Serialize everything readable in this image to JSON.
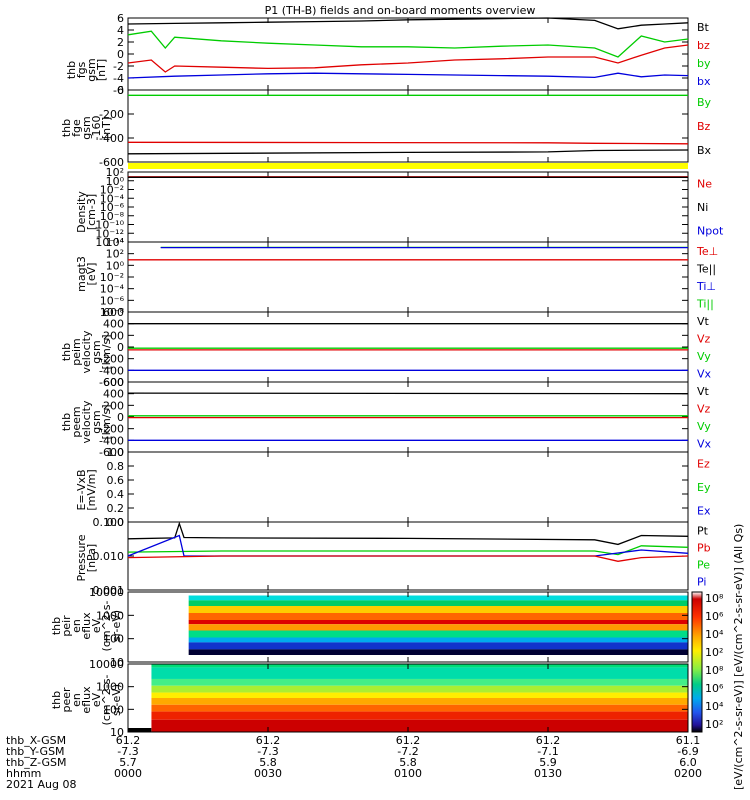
{
  "title": "P1 (TH-B) fields and on-board moments overview",
  "panels": [
    {
      "ylabel": [
        "thb",
        "fgs",
        "gsm",
        "[nT]"
      ],
      "ticks": [
        "6",
        "4",
        "2",
        "0",
        "-2",
        "-4",
        "-6"
      ],
      "legend": [
        {
          "label": "Bt",
          "color": "#000000"
        },
        {
          "label": "bz",
          "color": "#e00000"
        },
        {
          "label": "by",
          "color": "#00cc00"
        },
        {
          "label": "bx",
          "color": "#0000dd"
        }
      ]
    },
    {
      "ylabel": [
        "thb",
        "fge",
        "gsm",
        "-160",
        "[nT]"
      ],
      "ticks": [
        "0",
        "-200",
        "-400",
        "-600"
      ],
      "legend": [
        {
          "label": "By",
          "color": "#00cc00"
        },
        {
          "label": "Bz",
          "color": "#e00000"
        },
        {
          "label": "Bx",
          "color": "#000000"
        }
      ]
    },
    {
      "ylabel": [
        "Density",
        "[cm-3]"
      ],
      "ticks": [
        "10²",
        "10⁰",
        "10⁻²",
        "10⁻⁴",
        "10⁻⁶",
        "10⁻⁸",
        "10⁻¹⁰",
        "10⁻¹²",
        "10⁻¹⁴"
      ],
      "legend": [
        {
          "label": "Ne",
          "color": "#e00000"
        },
        {
          "label": "Ni",
          "color": "#000000"
        },
        {
          "label": "Npot",
          "color": "#0000dd"
        }
      ]
    },
    {
      "ylabel": [
        "magt3",
        "[eV]"
      ],
      "ticks": [
        "10⁴",
        "10²",
        "10⁰",
        "10⁻²",
        "10⁻⁴",
        "10⁻⁶",
        "10⁻⁸"
      ],
      "legend": [
        {
          "label": "Te⊥",
          "color": "#e00000"
        },
        {
          "label": "Te||",
          "color": "#000000"
        },
        {
          "label": "Ti⊥",
          "color": "#0000dd"
        },
        {
          "label": "Ti||",
          "color": "#00cc00"
        }
      ]
    },
    {
      "ylabel": [
        "thb",
        "peim",
        "velocity",
        "gsm",
        "[km/s]"
      ],
      "ticks": [
        "600",
        "400",
        "200",
        "0",
        "-200",
        "-400",
        "-600"
      ],
      "legend": [
        {
          "label": "Vt",
          "color": "#000000"
        },
        {
          "label": "Vz",
          "color": "#e00000"
        },
        {
          "label": "Vy",
          "color": "#00cc00"
        },
        {
          "label": "Vx",
          "color": "#0000dd"
        }
      ]
    },
    {
      "ylabel": [
        "thb",
        "peem",
        "velocity",
        "gsm",
        "[km/s]"
      ],
      "ticks": [
        "600",
        "400",
        "200",
        "0",
        "-200",
        "-400",
        "-600"
      ],
      "legend": [
        {
          "label": "Vt",
          "color": "#000000"
        },
        {
          "label": "Vz",
          "color": "#e00000"
        },
        {
          "label": "Vy",
          "color": "#00cc00"
        },
        {
          "label": "Vx",
          "color": "#0000dd"
        }
      ]
    },
    {
      "ylabel": [
        "E=-VxB",
        "[mV/m]"
      ],
      "ticks": [
        "1.0",
        "0.8",
        "0.6",
        "0.4",
        "0.2",
        "0.0"
      ],
      "legend": [
        {
          "label": "Ez",
          "color": "#e00000"
        },
        {
          "label": "Ey",
          "color": "#00cc00"
        },
        {
          "label": "Ex",
          "color": "#0000dd"
        }
      ]
    },
    {
      "ylabel": [
        "Pressure",
        "[nPa]"
      ],
      "ticks": [
        "0.100",
        "0.010",
        "0.001"
      ],
      "legend": [
        {
          "label": "Pt",
          "color": "#000000"
        },
        {
          "label": "Pb",
          "color": "#e00000"
        },
        {
          "label": "Pe",
          "color": "#00cc00"
        },
        {
          "label": "Pi",
          "color": "#0000dd"
        }
      ]
    },
    {
      "ylabel": [
        "thb",
        "peir",
        "en",
        "eflux",
        "eV",
        "(cm^2-s-",
        "sr-eV)"
      ],
      "ticks": [
        "10000",
        "1000",
        "100",
        "10"
      ]
    },
    {
      "ylabel": [
        "thb",
        "peer",
        "en",
        "eflux",
        "eV",
        "(cm^2-s-",
        "sr-eV)"
      ],
      "ticks": [
        "10000",
        "1000",
        "100",
        "10"
      ]
    }
  ],
  "colorbar": {
    "ticks": [
      "10⁸",
      "10⁶",
      "10⁴",
      "10²"
    ],
    "label": "[eV/(cm^2-s-sr-eV)] [eV/(cm^2-s-sr-eV)] (All Qs)"
  },
  "footer": {
    "row_labels": [
      "thb_X-GSM",
      "thb_Y-GSM",
      "thb_Z-GSM",
      "hhmm",
      "2021 Aug 08"
    ],
    "columns": [
      {
        "x": "61.2",
        "y": "-7.3",
        "z": "5.7",
        "hhmm": "0000"
      },
      {
        "x": "61.2",
        "y": "-7.3",
        "z": "5.8",
        "hhmm": "0030"
      },
      {
        "x": "61.2",
        "y": "-7.2",
        "z": "5.8",
        "hhmm": "0100"
      },
      {
        "x": "61.2",
        "y": "-7.1",
        "z": "5.9",
        "hhmm": "0130"
      },
      {
        "x": "61.1",
        "y": "-6.9",
        "z": "6.0",
        "hhmm": "0200"
      }
    ]
  },
  "chart_data": [
    {
      "type": "line",
      "x_unit": "hhmm",
      "xlim": [
        "0000",
        "0200"
      ],
      "ylim": [
        -6,
        6
      ],
      "series": [
        {
          "name": "Bt",
          "color": "#000000",
          "x": [
            0,
            10,
            20,
            30,
            40,
            50,
            60,
            70,
            80,
            90,
            100,
            105,
            110,
            115,
            120
          ],
          "y": [
            5,
            5.1,
            5.2,
            5.3,
            5.4,
            5.5,
            5.7,
            5.8,
            5.9,
            6.0,
            5.6,
            4.2,
            4.8,
            5.0,
            5.2
          ]
        },
        {
          "name": "bz",
          "color": "#e00000",
          "x": [
            0,
            5,
            8,
            10,
            20,
            30,
            40,
            50,
            60,
            70,
            80,
            90,
            100,
            105,
            110,
            115,
            120
          ],
          "y": [
            -1.5,
            -1.0,
            -3.0,
            -2.0,
            -2.2,
            -2.4,
            -2.3,
            -1.8,
            -1.5,
            -1.0,
            -0.8,
            -0.5,
            -0.5,
            -1.5,
            -0.2,
            1.0,
            1.5
          ]
        },
        {
          "name": "by",
          "color": "#00cc00",
          "x": [
            0,
            5,
            8,
            10,
            20,
            30,
            40,
            50,
            60,
            70,
            80,
            90,
            100,
            105,
            110,
            115,
            120
          ],
          "y": [
            3.2,
            3.8,
            1.0,
            2.8,
            2.2,
            1.8,
            1.5,
            1.2,
            1.2,
            1.0,
            1.3,
            1.5,
            1.0,
            -0.5,
            3.0,
            2.0,
            2.5
          ]
        },
        {
          "name": "bx",
          "color": "#0000dd",
          "x": [
            0,
            10,
            20,
            30,
            40,
            50,
            60,
            70,
            80,
            90,
            100,
            105,
            110,
            115,
            120
          ],
          "y": [
            -4.0,
            -3.7,
            -3.5,
            -3.3,
            -3.2,
            -3.3,
            -3.4,
            -3.5,
            -3.6,
            -3.7,
            -3.9,
            -3.2,
            -3.8,
            -3.5,
            -3.6
          ]
        }
      ]
    },
    {
      "type": "line",
      "x_unit": "hhmm",
      "xlim": [
        "0000",
        "0200"
      ],
      "ylim": [
        -700,
        50
      ],
      "series": [
        {
          "name": "By",
          "color": "#00cc00",
          "x": [
            0,
            120
          ],
          "y": [
            -5,
            -5
          ]
        },
        {
          "name": "Bz",
          "color": "#e00000",
          "x": [
            0,
            90,
            100,
            120
          ],
          "y": [
            -495,
            -500,
            -505,
            -510
          ]
        },
        {
          "name": "Bx",
          "color": "#000000",
          "x": [
            0,
            60,
            90,
            100,
            120
          ],
          "y": [
            -615,
            -600,
            -595,
            -580,
            -575
          ]
        }
      ]
    },
    {
      "type": "line",
      "x_unit": "hhmm",
      "xlim": [
        "0000",
        "0200"
      ],
      "ylim": [
        1e-14,
        100
      ],
      "y_scale": "log",
      "series": [
        {
          "name": "Ne",
          "color": "#e00000",
          "x": [
            0,
            120
          ],
          "y": [
            8,
            8
          ]
        },
        {
          "name": "Ni",
          "color": "#000000",
          "x": [
            0,
            120
          ],
          "y": [
            6,
            6
          ]
        }
      ]
    },
    {
      "type": "line",
      "x_unit": "hhmm",
      "xlim": [
        "0000",
        "0200"
      ],
      "ylim": [
        1e-09,
        10000.0
      ],
      "y_scale": "log",
      "series": [
        {
          "name": "Te⊥",
          "color": "#e00000",
          "x": [
            0,
            120
          ],
          "y": [
            5,
            5
          ]
        },
        {
          "name": "Ti||",
          "color": "#00cc00",
          "x": [
            7,
            120
          ],
          "y": [
            1000,
            1000
          ]
        },
        {
          "name": "Ti⊥",
          "color": "#0000dd",
          "x": [
            7,
            120
          ],
          "y": [
            900,
            900
          ]
        }
      ]
    },
    {
      "type": "line",
      "x_unit": "hhmm",
      "xlim": [
        "0000",
        "0200"
      ],
      "ylim": [
        -600,
        600
      ],
      "series": [
        {
          "name": "Vt",
          "color": "#000000",
          "x": [
            0,
            120
          ],
          "y": [
            400,
            400
          ]
        },
        {
          "name": "Vz",
          "color": "#e00000",
          "x": [
            0,
            120
          ],
          "y": [
            -50,
            -50
          ]
        },
        {
          "name": "Vy",
          "color": "#00cc00",
          "x": [
            0,
            120
          ],
          "y": [
            -20,
            -20
          ]
        },
        {
          "name": "Vx",
          "color": "#0000dd",
          "x": [
            0,
            120
          ],
          "y": [
            -400,
            -400
          ]
        }
      ]
    },
    {
      "type": "line",
      "x_unit": "hhmm",
      "xlim": [
        "0000",
        "0200"
      ],
      "ylim": [
        -600,
        600
      ],
      "series": [
        {
          "name": "Vt",
          "color": "#000000",
          "x": [
            0,
            120
          ],
          "y": [
            410,
            400
          ]
        },
        {
          "name": "Vz",
          "color": "#e00000",
          "x": [
            0,
            120
          ],
          "y": [
            -10,
            -10
          ]
        },
        {
          "name": "Vy",
          "color": "#00cc00",
          "x": [
            0,
            120
          ],
          "y": [
            20,
            20
          ]
        },
        {
          "name": "Vx",
          "color": "#0000dd",
          "x": [
            0,
            120
          ],
          "y": [
            -400,
            -400
          ]
        }
      ]
    },
    {
      "type": "line",
      "x_unit": "hhmm",
      "xlim": [
        "0000",
        "0200"
      ],
      "ylim": [
        0,
        1
      ],
      "series": []
    },
    {
      "type": "line",
      "x_unit": "hhmm",
      "xlim": [
        "0000",
        "0200"
      ],
      "ylim": [
        0.001,
        0.1
      ],
      "y_scale": "log",
      "series": [
        {
          "name": "Pt",
          "color": "#000000",
          "x": [
            0,
            10,
            11,
            12,
            20,
            60,
            100,
            105,
            110,
            120
          ],
          "y": [
            0.032,
            0.034,
            0.09,
            0.035,
            0.034,
            0.033,
            0.03,
            0.022,
            0.04,
            0.038
          ]
        },
        {
          "name": "Pe",
          "color": "#00cc00",
          "x": [
            0,
            20,
            60,
            100,
            105,
            110,
            120
          ],
          "y": [
            0.013,
            0.014,
            0.014,
            0.014,
            0.011,
            0.02,
            0.018
          ]
        },
        {
          "name": "Pi",
          "color": "#0000dd",
          "x": [
            0,
            11,
            12,
            20,
            60,
            100,
            110,
            120
          ],
          "y": [
            0.01,
            0.04,
            0.01,
            0.01,
            0.01,
            0.01,
            0.015,
            0.012
          ]
        },
        {
          "name": "Pb",
          "color": "#e00000",
          "x": [
            0,
            20,
            60,
            100,
            105,
            110,
            120
          ],
          "y": [
            0.009,
            0.01,
            0.01,
            0.01,
            0.007,
            0.009,
            0.01
          ]
        }
      ]
    },
    {
      "type": "heatmap",
      "x_unit": "hhmm",
      "xlim": [
        "0000",
        "0200"
      ],
      "y_unit": "eV",
      "y_scale": "log",
      "ylim": [
        5,
        20000
      ],
      "data_start": "0013",
      "z_scale": "log",
      "zlim": [
        10.0,
        1000000000.0
      ]
    },
    {
      "type": "heatmap",
      "x_unit": "hhmm",
      "xlim": [
        "0000",
        "0200"
      ],
      "y_unit": "eV",
      "y_scale": "log",
      "ylim": [
        5,
        20000
      ],
      "data_start": "0005",
      "z_scale": "log",
      "zlim": [
        10.0,
        1000000000.0
      ]
    }
  ]
}
